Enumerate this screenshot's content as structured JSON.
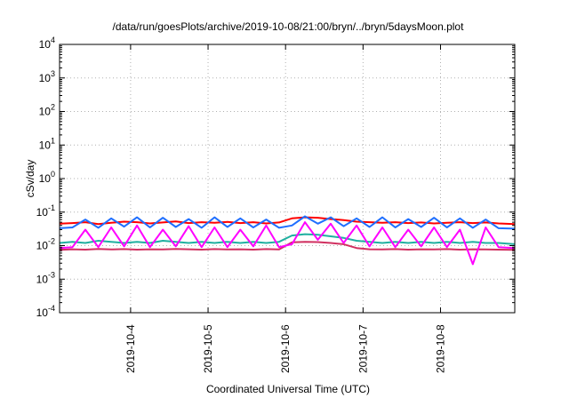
{
  "chart_data": {
    "type": "line",
    "title": "/data/run/goesPlots/archive/2019-10-08/21:00/bryn/../bryn/5daysMoon.plot",
    "xlabel": "Coordinated Universal Time (UTC)",
    "ylabel": "cSv/day",
    "yscale": "log",
    "ylim": [
      0.0001,
      10000
    ],
    "xlim": [
      "2019-10-03T02:00",
      "2019-10-08T23:00"
    ],
    "grid": true,
    "x_ticks": [
      {
        "label": "2019-10-4",
        "date": "2019-10-04T00:00"
      },
      {
        "label": "2019-10-5",
        "date": "2019-10-05T00:00"
      },
      {
        "label": "2019-10-6",
        "date": "2019-10-06T00:00"
      },
      {
        "label": "2019-10-7",
        "date": "2019-10-07T00:00"
      },
      {
        "label": "2019-10-8",
        "date": "2019-10-08T00:00"
      }
    ],
    "y_ticks": [
      {
        "base": "10",
        "exp": "-4",
        "value": 0.0001
      },
      {
        "base": "10",
        "exp": "-3",
        "value": 0.001
      },
      {
        "base": "10",
        "exp": "-2",
        "value": 0.01
      },
      {
        "base": "10",
        "exp": "-1",
        "value": 0.1
      },
      {
        "base": "10",
        "exp": "0",
        "value": 1
      },
      {
        "base": "10",
        "exp": "1",
        "value": 10
      },
      {
        "base": "10",
        "exp": "2",
        "value": 100
      },
      {
        "base": "10",
        "exp": "3",
        "value": 1000
      },
      {
        "base": "10",
        "exp": "4",
        "value": 10000
      }
    ],
    "x": [
      "2019-10-03T02:00",
      "2019-10-03T06:00",
      "2019-10-03T10:00",
      "2019-10-03T14:00",
      "2019-10-03T18:00",
      "2019-10-03T22:00",
      "2019-10-04T02:00",
      "2019-10-04T06:00",
      "2019-10-04T10:00",
      "2019-10-04T14:00",
      "2019-10-04T18:00",
      "2019-10-04T22:00",
      "2019-10-05T02:00",
      "2019-10-05T06:00",
      "2019-10-05T10:00",
      "2019-10-05T14:00",
      "2019-10-05T18:00",
      "2019-10-05T22:00",
      "2019-10-06T02:00",
      "2019-10-06T06:00",
      "2019-10-06T10:00",
      "2019-10-06T14:00",
      "2019-10-06T18:00",
      "2019-10-06T22:00",
      "2019-10-07T02:00",
      "2019-10-07T06:00",
      "2019-10-07T10:00",
      "2019-10-07T14:00",
      "2019-10-07T18:00",
      "2019-10-07T22:00",
      "2019-10-08T02:00",
      "2019-10-08T06:00",
      "2019-10-08T10:00",
      "2019-10-08T14:00",
      "2019-10-08T18:00",
      "2019-10-08T23:00"
    ],
    "series": [
      {
        "color": "#ff0000",
        "values": [
          0.045,
          0.047,
          0.05,
          0.044,
          0.048,
          0.052,
          0.05,
          0.046,
          0.049,
          0.053,
          0.047,
          0.05,
          0.048,
          0.051,
          0.047,
          0.05,
          0.046,
          0.049,
          0.065,
          0.07,
          0.068,
          0.062,
          0.058,
          0.052,
          0.05,
          0.048,
          0.05,
          0.047,
          0.049,
          0.046,
          0.048,
          0.05,
          0.047,
          0.049,
          0.046,
          0.044
        ]
      },
      {
        "color": "#1f6fff",
        "values": [
          0.033,
          0.035,
          0.06,
          0.034,
          0.065,
          0.037,
          0.07,
          0.035,
          0.068,
          0.036,
          0.062,
          0.034,
          0.07,
          0.036,
          0.065,
          0.035,
          0.06,
          0.034,
          0.04,
          0.075,
          0.045,
          0.07,
          0.038,
          0.065,
          0.036,
          0.07,
          0.035,
          0.062,
          0.036,
          0.068,
          0.035,
          0.065,
          0.034,
          0.06,
          0.033,
          0.032
        ]
      },
      {
        "color": "#20b0a0",
        "values": [
          0.012,
          0.013,
          0.012,
          0.014,
          0.013,
          0.012,
          0.013,
          0.012,
          0.014,
          0.013,
          0.012,
          0.013,
          0.012,
          0.013,
          0.012,
          0.013,
          0.012,
          0.013,
          0.02,
          0.022,
          0.021,
          0.019,
          0.017,
          0.014,
          0.013,
          0.012,
          0.013,
          0.012,
          0.013,
          0.012,
          0.013,
          0.012,
          0.013,
          0.012,
          0.012,
          0.011
        ]
      },
      {
        "color": "#d03060",
        "values": [
          0.0075,
          0.0078,
          0.0076,
          0.008,
          0.0077,
          0.0079,
          0.0076,
          0.0078,
          0.0077,
          0.008,
          0.0078,
          0.0076,
          0.0079,
          0.0077,
          0.0078,
          0.0076,
          0.0079,
          0.0077,
          0.0125,
          0.013,
          0.0128,
          0.012,
          0.011,
          0.0085,
          0.0078,
          0.0077,
          0.0079,
          0.0076,
          0.0078,
          0.0077,
          0.0079,
          0.0076,
          0.0078,
          0.0077,
          0.0076,
          0.0075
        ]
      },
      {
        "color": "#ff00ff",
        "values": [
          0.0085,
          0.009,
          0.03,
          0.009,
          0.035,
          0.0095,
          0.04,
          0.009,
          0.03,
          0.0095,
          0.038,
          0.009,
          0.035,
          0.009,
          0.03,
          0.0095,
          0.04,
          0.009,
          0.011,
          0.05,
          0.015,
          0.045,
          0.012,
          0.04,
          0.0095,
          0.035,
          0.009,
          0.03,
          0.0095,
          0.035,
          0.009,
          0.03,
          0.0028,
          0.035,
          0.009,
          0.0085
        ]
      }
    ]
  }
}
